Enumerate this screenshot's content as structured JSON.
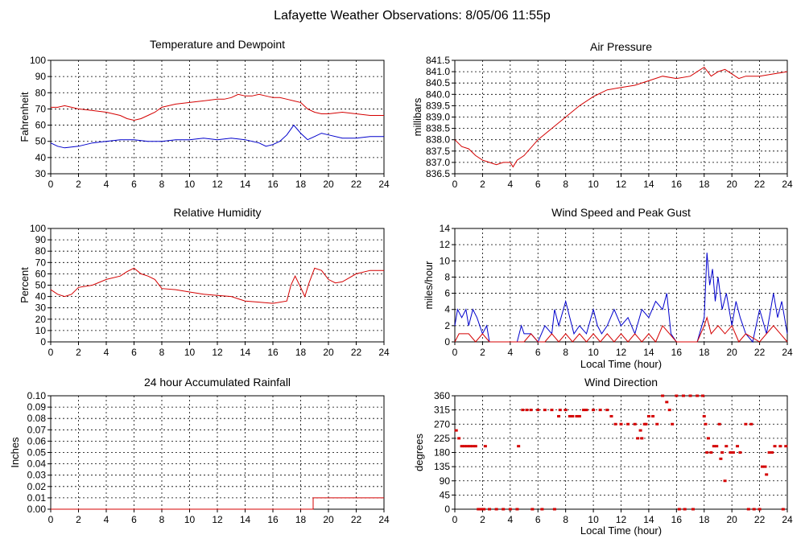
{
  "page_title": "Lafayette Weather Observations: 8/05/06 11:55p",
  "colors": {
    "red": "#d40000",
    "blue": "#0000cc",
    "axis": "#000000",
    "grid": "#000000"
  },
  "chart_data": [
    {
      "id": "temp",
      "type": "line",
      "title": "Temperature and Dewpoint",
      "xlabel": "",
      "ylabel": "Fahrenheit",
      "xlim": [
        0,
        24
      ],
      "ylim": [
        30,
        100
      ],
      "xticks": [
        0,
        2,
        4,
        6,
        8,
        10,
        12,
        14,
        16,
        18,
        20,
        22,
        24
      ],
      "yticks": [
        30,
        40,
        50,
        60,
        70,
        80,
        90,
        100
      ],
      "ytick_labels": [
        "30",
        "40",
        "50",
        "60",
        "70",
        "80",
        "90",
        "100"
      ],
      "grid": true,
      "series": [
        {
          "color": "red",
          "x": [
            0,
            0.5,
            1,
            1.5,
            2,
            3,
            4,
            5,
            5.5,
            6,
            6.5,
            7,
            7.5,
            8,
            9,
            10,
            11,
            12,
            12.5,
            13,
            13.5,
            14,
            14.5,
            15,
            15.5,
            16,
            16.5,
            17,
            17.5,
            18,
            18.5,
            19,
            19.5,
            20,
            21,
            22,
            23,
            24
          ],
          "y": [
            71,
            71,
            72,
            71,
            70,
            69,
            68,
            66,
            64,
            63,
            64,
            66,
            68,
            71,
            73,
            74,
            75,
            76,
            76,
            77,
            79,
            78,
            78,
            79,
            78,
            77,
            77,
            76,
            75,
            74,
            70,
            68,
            67,
            67,
            68,
            67,
            66,
            66
          ]
        },
        {
          "color": "blue",
          "x": [
            0,
            0.5,
            1,
            2,
            3,
            4,
            5,
            6,
            7,
            8,
            9,
            10,
            11,
            12,
            13,
            14,
            15,
            15.5,
            16,
            16.5,
            17,
            17.5,
            18,
            18.5,
            19,
            19.5,
            20,
            21,
            22,
            23,
            24
          ],
          "y": [
            49,
            47,
            46,
            47,
            49,
            50,
            51,
            51,
            50,
            50,
            51,
            51,
            52,
            51,
            52,
            51,
            49,
            47,
            48,
            50,
            54,
            60,
            55,
            51,
            53,
            55,
            54,
            52,
            52,
            53,
            53
          ]
        }
      ]
    },
    {
      "id": "pressure",
      "type": "line",
      "title": "Air Pressure",
      "xlabel": "",
      "ylabel": "millibars",
      "xlim": [
        0,
        24
      ],
      "ylim": [
        836.5,
        841.5
      ],
      "xticks": [
        0,
        2,
        4,
        6,
        8,
        10,
        12,
        14,
        16,
        18,
        20,
        22,
        24
      ],
      "yticks": [
        836.5,
        837.0,
        837.5,
        838.0,
        838.5,
        839.0,
        839.5,
        840.0,
        840.5,
        841.0,
        841.5
      ],
      "ytick_labels": [
        "836.5",
        "837.0",
        "837.5",
        "838.0",
        "838.5",
        "839.0",
        "839.5",
        "840.0",
        "840.5",
        "841.0",
        "841.5"
      ],
      "grid": true,
      "series": [
        {
          "color": "red",
          "x": [
            0,
            0.5,
            1,
            1.5,
            2,
            2.5,
            3,
            3.5,
            4,
            4.2,
            4.5,
            5,
            6,
            7,
            8,
            9,
            10,
            11,
            12,
            13,
            14,
            15,
            16,
            17,
            17.5,
            18,
            18.5,
            19,
            19.5,
            20,
            20.5,
            21,
            22,
            23,
            24
          ],
          "y": [
            838.0,
            837.7,
            837.6,
            837.3,
            837.1,
            837.0,
            836.9,
            837.0,
            837.0,
            836.8,
            837.1,
            837.3,
            838.0,
            838.5,
            839.0,
            839.5,
            839.9,
            840.2,
            840.3,
            840.4,
            840.6,
            840.8,
            840.7,
            840.8,
            841.0,
            841.2,
            840.8,
            841.0,
            841.1,
            840.9,
            840.7,
            840.8,
            840.8,
            840.9,
            841.0
          ]
        }
      ]
    },
    {
      "id": "humidity",
      "type": "line",
      "title": "Relative Humidity",
      "xlabel": "",
      "ylabel": "Percent",
      "xlim": [
        0,
        24
      ],
      "ylim": [
        0,
        100
      ],
      "xticks": [
        0,
        2,
        4,
        6,
        8,
        10,
        12,
        14,
        16,
        18,
        20,
        22,
        24
      ],
      "yticks": [
        0,
        10,
        20,
        30,
        40,
        50,
        60,
        70,
        80,
        90,
        100
      ],
      "ytick_labels": [
        "0",
        "10",
        "20",
        "30",
        "40",
        "50",
        "60",
        "70",
        "80",
        "90",
        "100"
      ],
      "grid": true,
      "series": [
        {
          "color": "red",
          "x": [
            0,
            0.5,
            1,
            1.5,
            2,
            3,
            4,
            5,
            5.5,
            6,
            6.5,
            7,
            7.5,
            8,
            9,
            10,
            11,
            12,
            13,
            14,
            15,
            16,
            17,
            17.3,
            17.6,
            18,
            18.3,
            18.6,
            19,
            19.5,
            20,
            20.5,
            21,
            22,
            23,
            24
          ],
          "y": [
            46,
            42,
            40,
            42,
            48,
            50,
            55,
            58,
            62,
            65,
            60,
            58,
            55,
            47,
            46,
            44,
            42,
            41,
            40,
            36,
            35,
            34,
            36,
            50,
            58,
            48,
            40,
            52,
            65,
            63,
            55,
            52,
            53,
            60,
            63,
            63
          ]
        }
      ]
    },
    {
      "id": "wind",
      "type": "line",
      "title": "Wind Speed and Peak Gust",
      "xlabel": "Local Time (hour)",
      "ylabel": "miles/hour",
      "xlim": [
        0,
        24
      ],
      "ylim": [
        0,
        14
      ],
      "xticks": [
        0,
        2,
        4,
        6,
        8,
        10,
        12,
        14,
        16,
        18,
        20,
        22,
        24
      ],
      "yticks": [
        0,
        2,
        4,
        6,
        8,
        10,
        12,
        14
      ],
      "ytick_labels": [
        "0",
        "2",
        "4",
        "6",
        "8",
        "10",
        "12",
        "14"
      ],
      "grid": true,
      "series": [
        {
          "color": "blue",
          "x": [
            0,
            0.2,
            0.5,
            0.8,
            1,
            1.3,
            1.6,
            2,
            2.3,
            2.5,
            4.5,
            4.8,
            5,
            5.5,
            6,
            6.5,
            7,
            7.2,
            7.5,
            8,
            8.3,
            8.6,
            9,
            9.5,
            10,
            10.3,
            10.6,
            11,
            11.5,
            12,
            12.5,
            13,
            13.5,
            14,
            14.5,
            15,
            15.3,
            15.6,
            16,
            17,
            17.5,
            18,
            18.2,
            18.4,
            18.6,
            18.8,
            19,
            19.3,
            19.6,
            20,
            20.3,
            20.6,
            21,
            21.5,
            22,
            22.5,
            23,
            23.3,
            23.6,
            24
          ],
          "y": [
            2,
            4,
            3,
            4,
            2,
            4,
            3,
            1,
            2,
            0,
            0,
            2,
            1,
            1,
            0,
            2,
            1,
            4,
            2,
            5,
            3,
            1,
            2,
            1,
            4,
            2,
            1,
            2,
            4,
            2,
            3,
            1,
            4,
            3,
            5,
            4,
            6,
            1,
            0,
            0,
            0,
            3,
            11,
            7,
            9,
            5,
            8,
            4,
            6,
            2,
            5,
            3,
            1,
            0,
            4,
            1,
            6,
            3,
            5,
            1
          ]
        },
        {
          "color": "red",
          "x": [
            0,
            0.3,
            0.6,
            1,
            1.5,
            2,
            2.5,
            5,
            5.5,
            6,
            6.5,
            7,
            7.5,
            8,
            8.5,
            9,
            9.5,
            10,
            10.5,
            11,
            11.5,
            12,
            12.5,
            13,
            13.5,
            14,
            14.5,
            15,
            15.5,
            16,
            17,
            17.5,
            18,
            18.2,
            18.5,
            19,
            19.5,
            20,
            20.5,
            21,
            22,
            22.5,
            23,
            23.5,
            24
          ],
          "y": [
            0,
            1,
            1,
            1,
            0,
            1,
            0,
            0,
            1,
            0,
            0,
            1,
            0,
            1,
            0,
            1,
            0,
            1,
            0,
            1,
            0,
            1,
            0,
            1,
            0,
            1,
            0,
            2,
            1,
            0,
            0,
            0,
            2,
            3,
            1,
            2,
            1,
            2,
            0,
            1,
            0,
            1,
            2,
            1,
            0
          ]
        }
      ]
    },
    {
      "id": "rain",
      "type": "line",
      "title": "24 hour Accumulated Rainfall",
      "xlabel": "",
      "ylabel": "Inches",
      "xlim": [
        0,
        24
      ],
      "ylim": [
        0,
        0.1
      ],
      "xticks": [
        0,
        2,
        4,
        6,
        8,
        10,
        12,
        14,
        16,
        18,
        20,
        22,
        24
      ],
      "yticks": [
        0,
        0.01,
        0.02,
        0.03,
        0.04,
        0.05,
        0.06,
        0.07,
        0.08,
        0.09,
        0.1
      ],
      "ytick_labels": [
        "0.00",
        "0.01",
        "0.02",
        "0.03",
        "0.04",
        "0.05",
        "0.06",
        "0.07",
        "0.08",
        "0.09",
        "0.10"
      ],
      "grid": true,
      "series": [
        {
          "color": "red",
          "x": [
            0,
            18.9,
            18.9,
            24
          ],
          "y": [
            0,
            0,
            0.01,
            0.01
          ]
        }
      ]
    },
    {
      "id": "direction",
      "type": "scatter",
      "title": "Wind Direction",
      "xlabel": "Local Time (hour)",
      "ylabel": "degrees",
      "xlim": [
        0,
        24
      ],
      "ylim": [
        0,
        360
      ],
      "xticks": [
        0,
        2,
        4,
        6,
        8,
        10,
        12,
        14,
        16,
        18,
        20,
        22,
        24
      ],
      "yticks": [
        0,
        45,
        90,
        135,
        180,
        225,
        270,
        315,
        360
      ],
      "ytick_labels": [
        "0",
        "45",
        "90",
        "135",
        "180",
        "225",
        "270",
        "315",
        "360"
      ],
      "grid": true,
      "series": [
        {
          "color": "red",
          "x": [
            0.1,
            0.3,
            0.5,
            0.7,
            0.9,
            1.1,
            1.3,
            1.5,
            1.7,
            2,
            2.2,
            1.9,
            2.1,
            2.5,
            3,
            3.5,
            4,
            4.5,
            4.6,
            4.9,
            5.2,
            5.5,
            6,
            6.5,
            7,
            5.6,
            6.3,
            7.2,
            7.6,
            7.5,
            8,
            8.5,
            9,
            9.5,
            8.3,
            8.8,
            9.3,
            10,
            10.5,
            11,
            11.3,
            11.6,
            12,
            12.5,
            13,
            13.2,
            13.5,
            13.8,
            14,
            14.3,
            14.6,
            13.4,
            13.7,
            15,
            15.3,
            15.5,
            15.7,
            16,
            16.5,
            17,
            17.5,
            17.9,
            16.2,
            16.6,
            17.2,
            18,
            18.1,
            18.3,
            18.5,
            18.7,
            18.9,
            18.2,
            19.1,
            19.3,
            19.5,
            19.2,
            19.6,
            19.9,
            20.1,
            20.4,
            20.6,
            21,
            21.4,
            21.2,
            21.6,
            22,
            22.2,
            22.4,
            22.5,
            22.7,
            22.9,
            23.1,
            23.5,
            23.9,
            23.7
          ],
          "y": [
            250,
            225,
            200,
            200,
            200,
            200,
            200,
            200,
            0,
            0,
            200,
            0,
            0,
            0,
            0,
            0,
            0,
            0,
            200,
            315,
            315,
            315,
            315,
            315,
            315,
            0,
            0,
            0,
            315,
            295,
            315,
            295,
            295,
            315,
            295,
            295,
            315,
            315,
            315,
            315,
            295,
            270,
            270,
            270,
            270,
            225,
            225,
            270,
            295,
            295,
            270,
            250,
            270,
            365,
            340,
            315,
            270,
            365,
            365,
            365,
            365,
            365,
            0,
            0,
            0,
            295,
            270,
            225,
            180,
            200,
            200,
            180,
            270,
            180,
            90,
            160,
            200,
            180,
            180,
            200,
            180,
            270,
            270,
            0,
            0,
            0,
            135,
            135,
            110,
            180,
            180,
            200,
            200,
            200,
            0
          ]
        }
      ]
    }
  ]
}
